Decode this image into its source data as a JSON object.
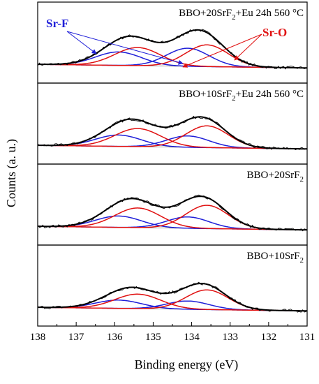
{
  "chart_data": {
    "type": "line",
    "xlabel": "Binding energy (eV)",
    "ylabel": "Counts (a. u.)",
    "xlim": [
      138,
      131
    ],
    "x_ticks": [
      "138",
      "137",
      "136",
      "135",
      "134",
      "133",
      "132",
      "131"
    ],
    "x_reversed": true,
    "annotations": {
      "sr_f": "Sr-F",
      "sr_o": "Sr-O"
    },
    "colors": {
      "data": "#000000",
      "fit": "#000000",
      "background": "#7a7a7a",
      "sr_f": "#1f1fd8",
      "sr_o": "#e01010"
    },
    "panels": [
      {
        "title_parts": [
          "BBO+20SrF",
          "2",
          "+Eu 24h 560 °C"
        ],
        "background": [
          0.05,
          0.12
        ],
        "sr_f_peaks": [
          {
            "center": 135.9,
            "height": 0.26,
            "fwhm": 1.4
          },
          {
            "center": 134.1,
            "height": 0.35,
            "fwhm": 1.3
          }
        ],
        "sr_o_peaks": [
          {
            "center": 135.4,
            "height": 0.35,
            "fwhm": 1.4
          },
          {
            "center": 133.6,
            "height": 0.42,
            "fwhm": 1.3
          }
        ]
      },
      {
        "title_parts": [
          "BBO+10SrF",
          "2",
          "+Eu 24h 560 °C"
        ],
        "background": [
          0.05,
          0.12
        ],
        "sr_f_peaks": [
          {
            "center": 135.9,
            "height": 0.22,
            "fwhm": 1.4
          },
          {
            "center": 134.1,
            "height": 0.22,
            "fwhm": 1.3
          }
        ],
        "sr_o_peaks": [
          {
            "center": 135.4,
            "height": 0.35,
            "fwhm": 1.4
          },
          {
            "center": 133.6,
            "height": 0.42,
            "fwhm": 1.3
          }
        ]
      },
      {
        "title_parts": [
          "BBO+20SrF",
          "2",
          ""
        ],
        "background": [
          0.05,
          0.12
        ],
        "sr_f_peaks": [
          {
            "center": 135.9,
            "height": 0.22,
            "fwhm": 1.4
          },
          {
            "center": 134.1,
            "height": 0.22,
            "fwhm": 1.3
          }
        ],
        "sr_o_peaks": [
          {
            "center": 135.4,
            "height": 0.38,
            "fwhm": 1.4
          },
          {
            "center": 133.6,
            "height": 0.45,
            "fwhm": 1.3
          }
        ]
      },
      {
        "title_parts": [
          "BBO+10SrF",
          "2",
          ""
        ],
        "background": [
          0.05,
          0.12
        ],
        "sr_f_peaks": [
          {
            "center": 135.9,
            "height": 0.16,
            "fwhm": 1.4
          },
          {
            "center": 134.1,
            "height": 0.16,
            "fwhm": 1.3
          }
        ],
        "sr_o_peaks": [
          {
            "center": 135.4,
            "height": 0.28,
            "fwhm": 1.4
          },
          {
            "center": 133.6,
            "height": 0.38,
            "fwhm": 1.3
          }
        ]
      }
    ]
  }
}
